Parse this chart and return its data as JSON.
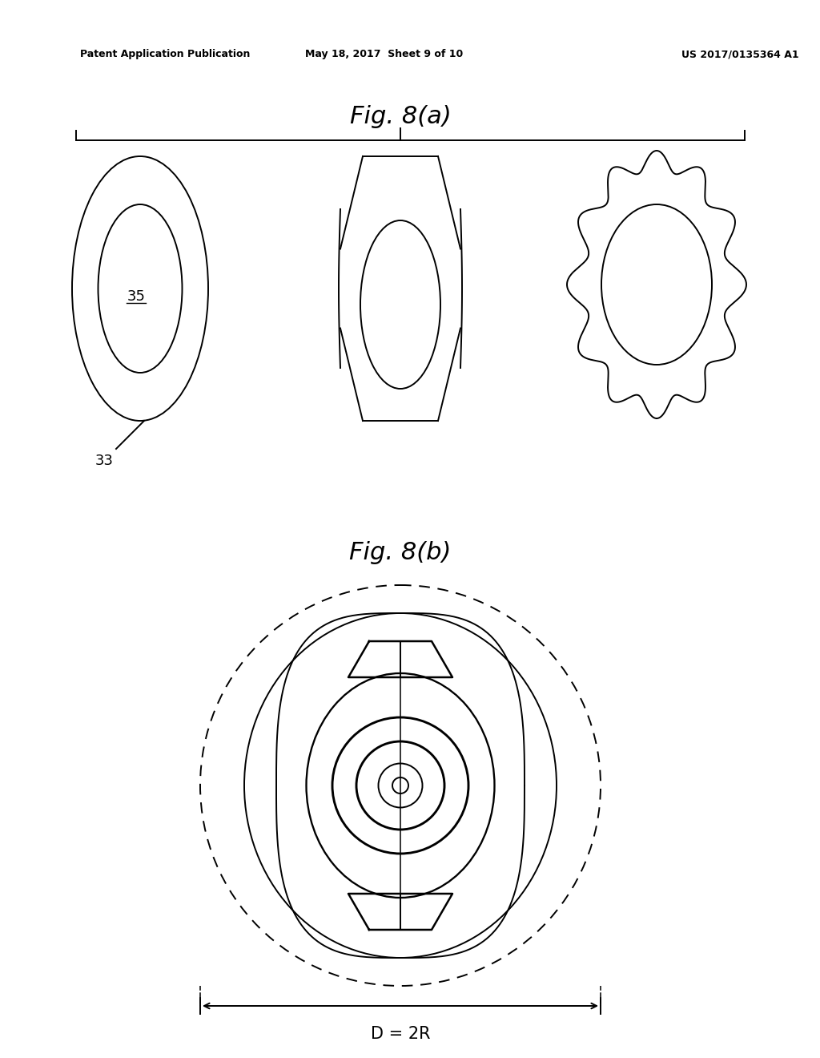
{
  "bg_color": "#ffffff",
  "line_color": "#000000",
  "header_left": "Patent Application Publication",
  "header_mid": "May 18, 2017  Sheet 9 of 10",
  "header_right": "US 2017/0135364 A1",
  "fig_a_title": "Fig. 8(a)",
  "fig_b_title": "Fig. 8(b)",
  "label_33": "33",
  "label_35": "35",
  "label_d2r": "D = 2R",
  "lw": 1.4
}
